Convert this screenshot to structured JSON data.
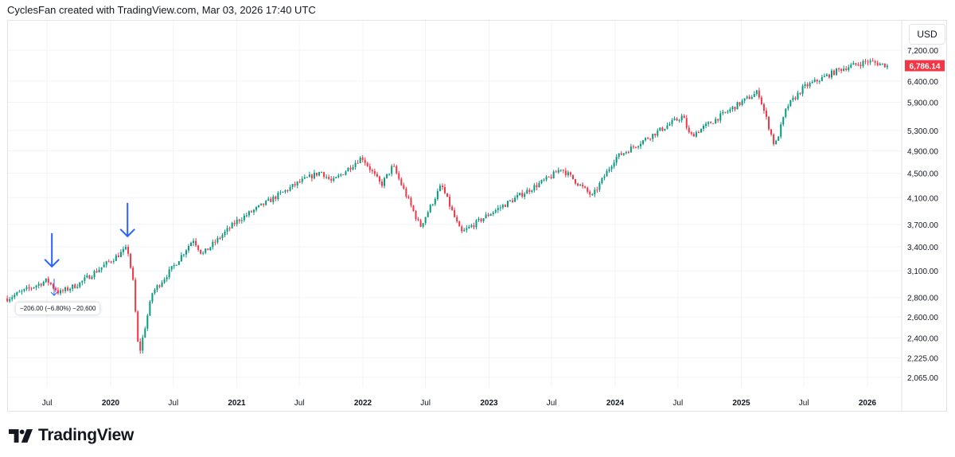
{
  "header": {
    "text": "CyclesFan created with TradingView.com, Mar 03, 2026 17:40 UTC"
  },
  "currency": "USD",
  "last_price_label": "6,786.14",
  "measure_label": "−206.00 (−6.80%) −20,600",
  "logo_text": "TradingView",
  "colors": {
    "up": "#089981",
    "down": "#f23645",
    "annotation": "#2962ff",
    "grid": "#f0f3fa"
  },
  "chart_data": {
    "type": "candlestick",
    "scale": "log",
    "grid": true,
    "ylim": [
      2000,
      7350
    ],
    "y_ticks": [
      "7,200.00",
      "6,400.00",
      "5,900.00",
      "5,300.00",
      "4,900.00",
      "4,500.00",
      "4,100.00",
      "3,700.00",
      "3,400.00",
      "3,100.00",
      "2,800.00",
      "2,600.00",
      "2,400.00",
      "2,225.00",
      "2,065.00"
    ],
    "y_tick_values": [
      7200,
      6400,
      5900,
      5300,
      4900,
      4500,
      4100,
      3700,
      3400,
      3100,
      2800,
      2600,
      2400,
      2225,
      2065
    ],
    "x_ticks": [
      {
        "label": "Jul",
        "date": "2019-07-01"
      },
      {
        "label": "2020",
        "date": "2020-01-01"
      },
      {
        "label": "Jul",
        "date": "2020-07-01"
      },
      {
        "label": "2021",
        "date": "2021-01-01"
      },
      {
        "label": "Jul",
        "date": "2021-07-01"
      },
      {
        "label": "2022",
        "date": "2022-01-01"
      },
      {
        "label": "Jul",
        "date": "2022-07-01"
      },
      {
        "label": "2023",
        "date": "2023-01-01"
      },
      {
        "label": "Jul",
        "date": "2023-07-01"
      },
      {
        "label": "2024",
        "date": "2024-01-01"
      },
      {
        "label": "Jul",
        "date": "2024-07-01"
      },
      {
        "label": "2025",
        "date": "2025-01-01"
      },
      {
        "label": "Jul",
        "date": "2025-07-01"
      },
      {
        "label": "2026",
        "date": "2026-01-01"
      }
    ],
    "last_price": 6786.14,
    "approx_closes": [
      [
        "2019-03-08",
        2790
      ],
      [
        "2019-07-01",
        2990
      ],
      [
        "2019-08-05",
        2850
      ],
      [
        "2019-10-01",
        2950
      ],
      [
        "2020-02-19",
        3380
      ],
      [
        "2020-03-06",
        2970
      ],
      [
        "2020-03-23",
        2240
      ],
      [
        "2020-05-01",
        2850
      ],
      [
        "2020-07-01",
        3150
      ],
      [
        "2020-08-28",
        3500
      ],
      [
        "2020-09-23",
        3300
      ],
      [
        "2021-01-01",
        3750
      ],
      [
        "2021-07-01",
        4350
      ],
      [
        "2021-09-02",
        4530
      ],
      [
        "2021-10-04",
        4350
      ],
      [
        "2021-12-29",
        4790
      ],
      [
        "2022-02-23",
        4300
      ],
      [
        "2022-03-29",
        4630
      ],
      [
        "2022-06-16",
        3670
      ],
      [
        "2022-08-16",
        4300
      ],
      [
        "2022-10-12",
        3580
      ],
      [
        "2023-01-01",
        3850
      ],
      [
        "2023-07-01",
        4450
      ],
      [
        "2023-07-28",
        4590
      ],
      [
        "2023-10-27",
        4120
      ],
      [
        "2024-01-01",
        4770
      ],
      [
        "2024-07-15",
        5600
      ],
      [
        "2024-08-05",
        5180
      ],
      [
        "2025-01-01",
        5900
      ],
      [
        "2025-02-19",
        6140
      ],
      [
        "2025-04-08",
        4980
      ],
      [
        "2025-05-13",
        5800
      ],
      [
        "2025-07-01",
        6250
      ],
      [
        "2025-10-15",
        6700
      ],
      [
        "2026-01-01",
        6900
      ],
      [
        "2026-03-03",
        6786.14
      ]
    ],
    "annotations": [
      {
        "type": "arrow-down",
        "date": "2019-07-15",
        "price": 3020
      },
      {
        "type": "arrow-down",
        "date": "2020-02-19",
        "price": 3390
      }
    ]
  }
}
